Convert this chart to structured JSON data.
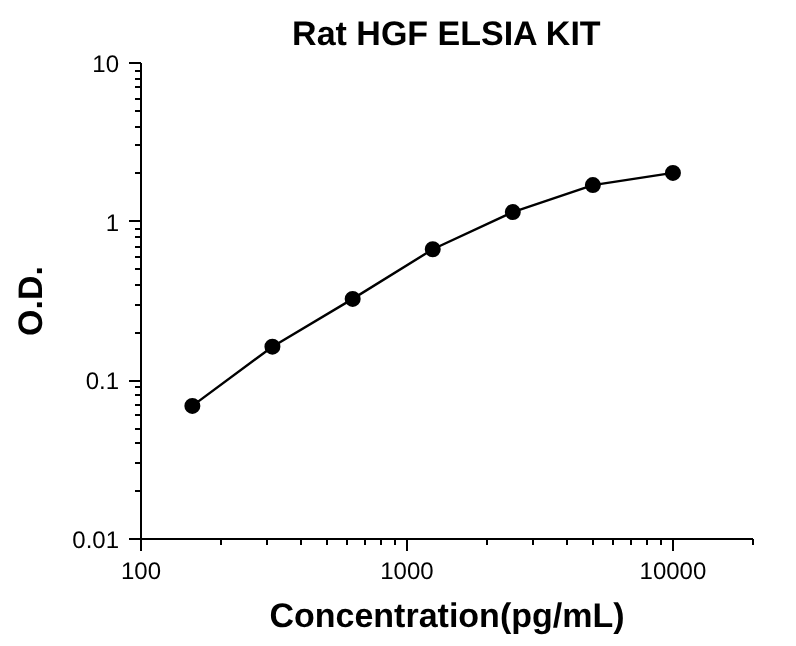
{
  "chart_data": {
    "type": "line",
    "title": "Rat HGF ELSIA KIT",
    "xlabel": "Concentration(pg/mL)",
    "ylabel": "O.D.",
    "x": [
      156,
      312,
      625,
      1250,
      2500,
      5000,
      10000
    ],
    "series": [
      {
        "color": "#000000",
        "values": [
          0.069,
          0.163,
          0.326,
          0.67,
          1.15,
          1.7,
          2.03
        ]
      }
    ],
    "log": "xy",
    "xlim": [
      100,
      20000
    ],
    "ylim": [
      0.01,
      10
    ],
    "xticks": [
      100,
      1000,
      10000
    ],
    "yticks": [
      0.01,
      0.1,
      1,
      10
    ],
    "marker": "circle",
    "line_style": "solid"
  }
}
